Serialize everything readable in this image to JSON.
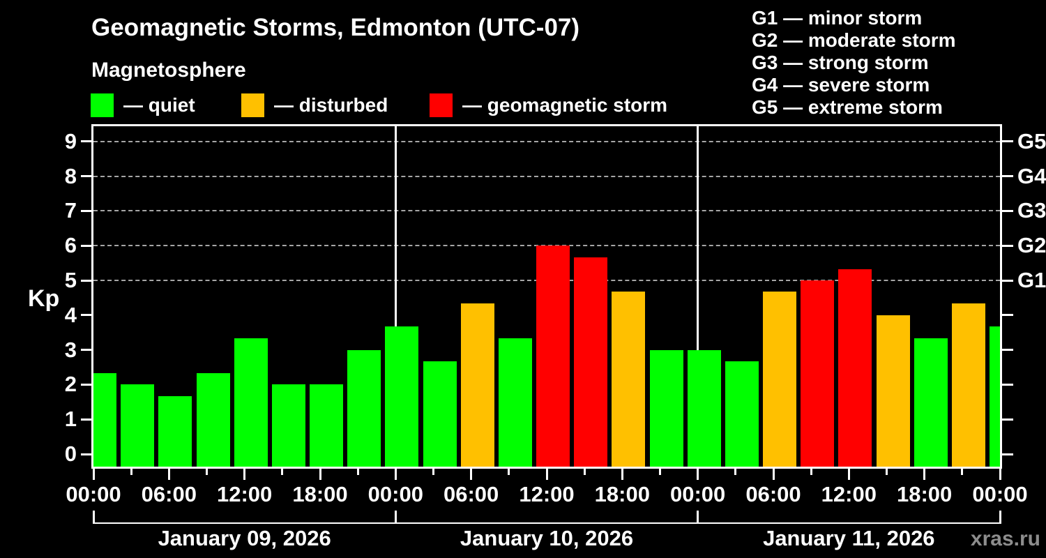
{
  "watermark": "xras.ru",
  "legend": [
    {
      "status": "quiet",
      "label": "— quiet",
      "color": "#00ff00"
    },
    {
      "status": "disturbed",
      "label": "— disturbed",
      "color": "#ffc000"
    },
    {
      "status": "storm",
      "label": "— geomagnetic storm",
      "color": "#ff0000"
    }
  ],
  "g_legend": [
    "G1 — minor storm",
    "G2 — moderate storm",
    "G3 — strong storm",
    "G4 — severe storm",
    "G5 — extreme storm"
  ],
  "chart_data": {
    "type": "bar",
    "title": "Geomagnetic Storms, Edmonton (UTC-07)",
    "subtitle": "Magnetosphere",
    "ylabel": "Kp",
    "ylim": [
      -0.36,
      9.44
    ],
    "xlim_hours": [
      0,
      72
    ],
    "bar_width_hours": 3,
    "y_ticks": [
      0,
      1,
      2,
      3,
      4,
      5,
      6,
      7,
      8,
      9
    ],
    "grid_levels": [
      5,
      6,
      7,
      8,
      9
    ],
    "grid_style": "dashed",
    "right_axis": [
      {
        "kp": 5,
        "label": "G1"
      },
      {
        "kp": 6,
        "label": "G2"
      },
      {
        "kp": 7,
        "label": "G3"
      },
      {
        "kp": 8,
        "label": "G4"
      },
      {
        "kp": 9,
        "label": "G5"
      }
    ],
    "x_minor_step_hours": 3,
    "x_major_step_hours": 6,
    "x_tick_labels": [
      "00:00",
      "06:00",
      "12:00",
      "18:00",
      "00:00",
      "06:00",
      "12:00",
      "18:00",
      "00:00",
      "06:00",
      "12:00",
      "18:00",
      "00:00"
    ],
    "day_boundaries_hours": [
      0,
      24,
      48,
      72
    ],
    "days": [
      "January 09, 2026",
      "January 10, 2026",
      "January 11, 2026"
    ],
    "status_colors": {
      "quiet": "#00ff00",
      "disturbed": "#ffc000",
      "storm": "#ff0000"
    },
    "bars": [
      {
        "hour_offset": 0,
        "kp": 2.33,
        "status": "quiet"
      },
      {
        "hour_offset": 3,
        "kp": 2.0,
        "status": "quiet"
      },
      {
        "hour_offset": 6,
        "kp": 1.67,
        "status": "quiet"
      },
      {
        "hour_offset": 9,
        "kp": 2.33,
        "status": "quiet"
      },
      {
        "hour_offset": 12,
        "kp": 3.33,
        "status": "quiet"
      },
      {
        "hour_offset": 15,
        "kp": 2.0,
        "status": "quiet"
      },
      {
        "hour_offset": 18,
        "kp": 2.0,
        "status": "quiet"
      },
      {
        "hour_offset": 21,
        "kp": 3.0,
        "status": "quiet"
      },
      {
        "hour_offset": 24,
        "kp": 3.67,
        "status": "quiet"
      },
      {
        "hour_offset": 27,
        "kp": 2.67,
        "status": "quiet"
      },
      {
        "hour_offset": 30,
        "kp": 4.33,
        "status": "disturbed"
      },
      {
        "hour_offset": 33,
        "kp": 3.33,
        "status": "quiet"
      },
      {
        "hour_offset": 36,
        "kp": 6.0,
        "status": "storm"
      },
      {
        "hour_offset": 39,
        "kp": 5.67,
        "status": "storm"
      },
      {
        "hour_offset": 42,
        "kp": 4.67,
        "status": "disturbed"
      },
      {
        "hour_offset": 45,
        "kp": 3.0,
        "status": "quiet"
      },
      {
        "hour_offset": 48,
        "kp": 3.0,
        "status": "quiet"
      },
      {
        "hour_offset": 51,
        "kp": 2.67,
        "status": "quiet"
      },
      {
        "hour_offset": 54,
        "kp": 4.67,
        "status": "disturbed"
      },
      {
        "hour_offset": 57,
        "kp": 5.0,
        "status": "storm"
      },
      {
        "hour_offset": 60,
        "kp": 5.33,
        "status": "storm"
      },
      {
        "hour_offset": 63,
        "kp": 4.0,
        "status": "disturbed"
      },
      {
        "hour_offset": 66,
        "kp": 3.33,
        "status": "quiet"
      },
      {
        "hour_offset": 69,
        "kp": 4.33,
        "status": "disturbed"
      },
      {
        "hour_offset": 72,
        "kp": 3.67,
        "status": "quiet"
      }
    ]
  }
}
